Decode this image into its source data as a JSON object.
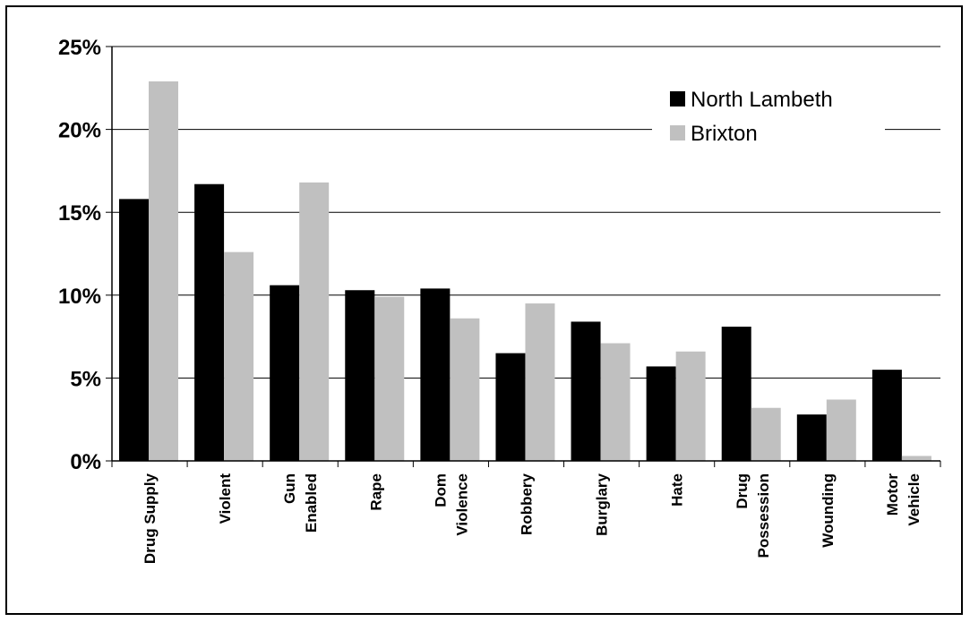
{
  "chart_data": {
    "type": "bar",
    "categories": [
      [
        "Drug Supply"
      ],
      [
        "Violent"
      ],
      [
        "Gun",
        "Enabled"
      ],
      [
        "Rape"
      ],
      [
        "Dom",
        "Violence"
      ],
      [
        "Robbery"
      ],
      [
        "Burglary"
      ],
      [
        "Hate"
      ],
      [
        "Drug",
        "Possession"
      ],
      [
        "Wounding"
      ],
      [
        "Motor",
        "Vehicle"
      ]
    ],
    "series": [
      {
        "name": "North Lambeth",
        "color": "#000000",
        "values": [
          15.8,
          16.7,
          10.6,
          10.3,
          10.4,
          6.5,
          8.4,
          5.7,
          8.1,
          2.8,
          5.5
        ]
      },
      {
        "name": "Brixton",
        "color": "#c0c0c0",
        "values": [
          22.9,
          12.6,
          16.8,
          9.9,
          8.6,
          9.5,
          7.1,
          6.6,
          3.2,
          3.7,
          0.3
        ]
      }
    ],
    "ylim": [
      0,
      25
    ],
    "yticks": [
      "0%",
      "5%",
      "10%",
      "15%",
      "20%",
      "25%"
    ],
    "ytick_values": [
      0,
      5,
      10,
      15,
      20,
      25
    ],
    "grid": true,
    "legend_position": "top-right"
  }
}
